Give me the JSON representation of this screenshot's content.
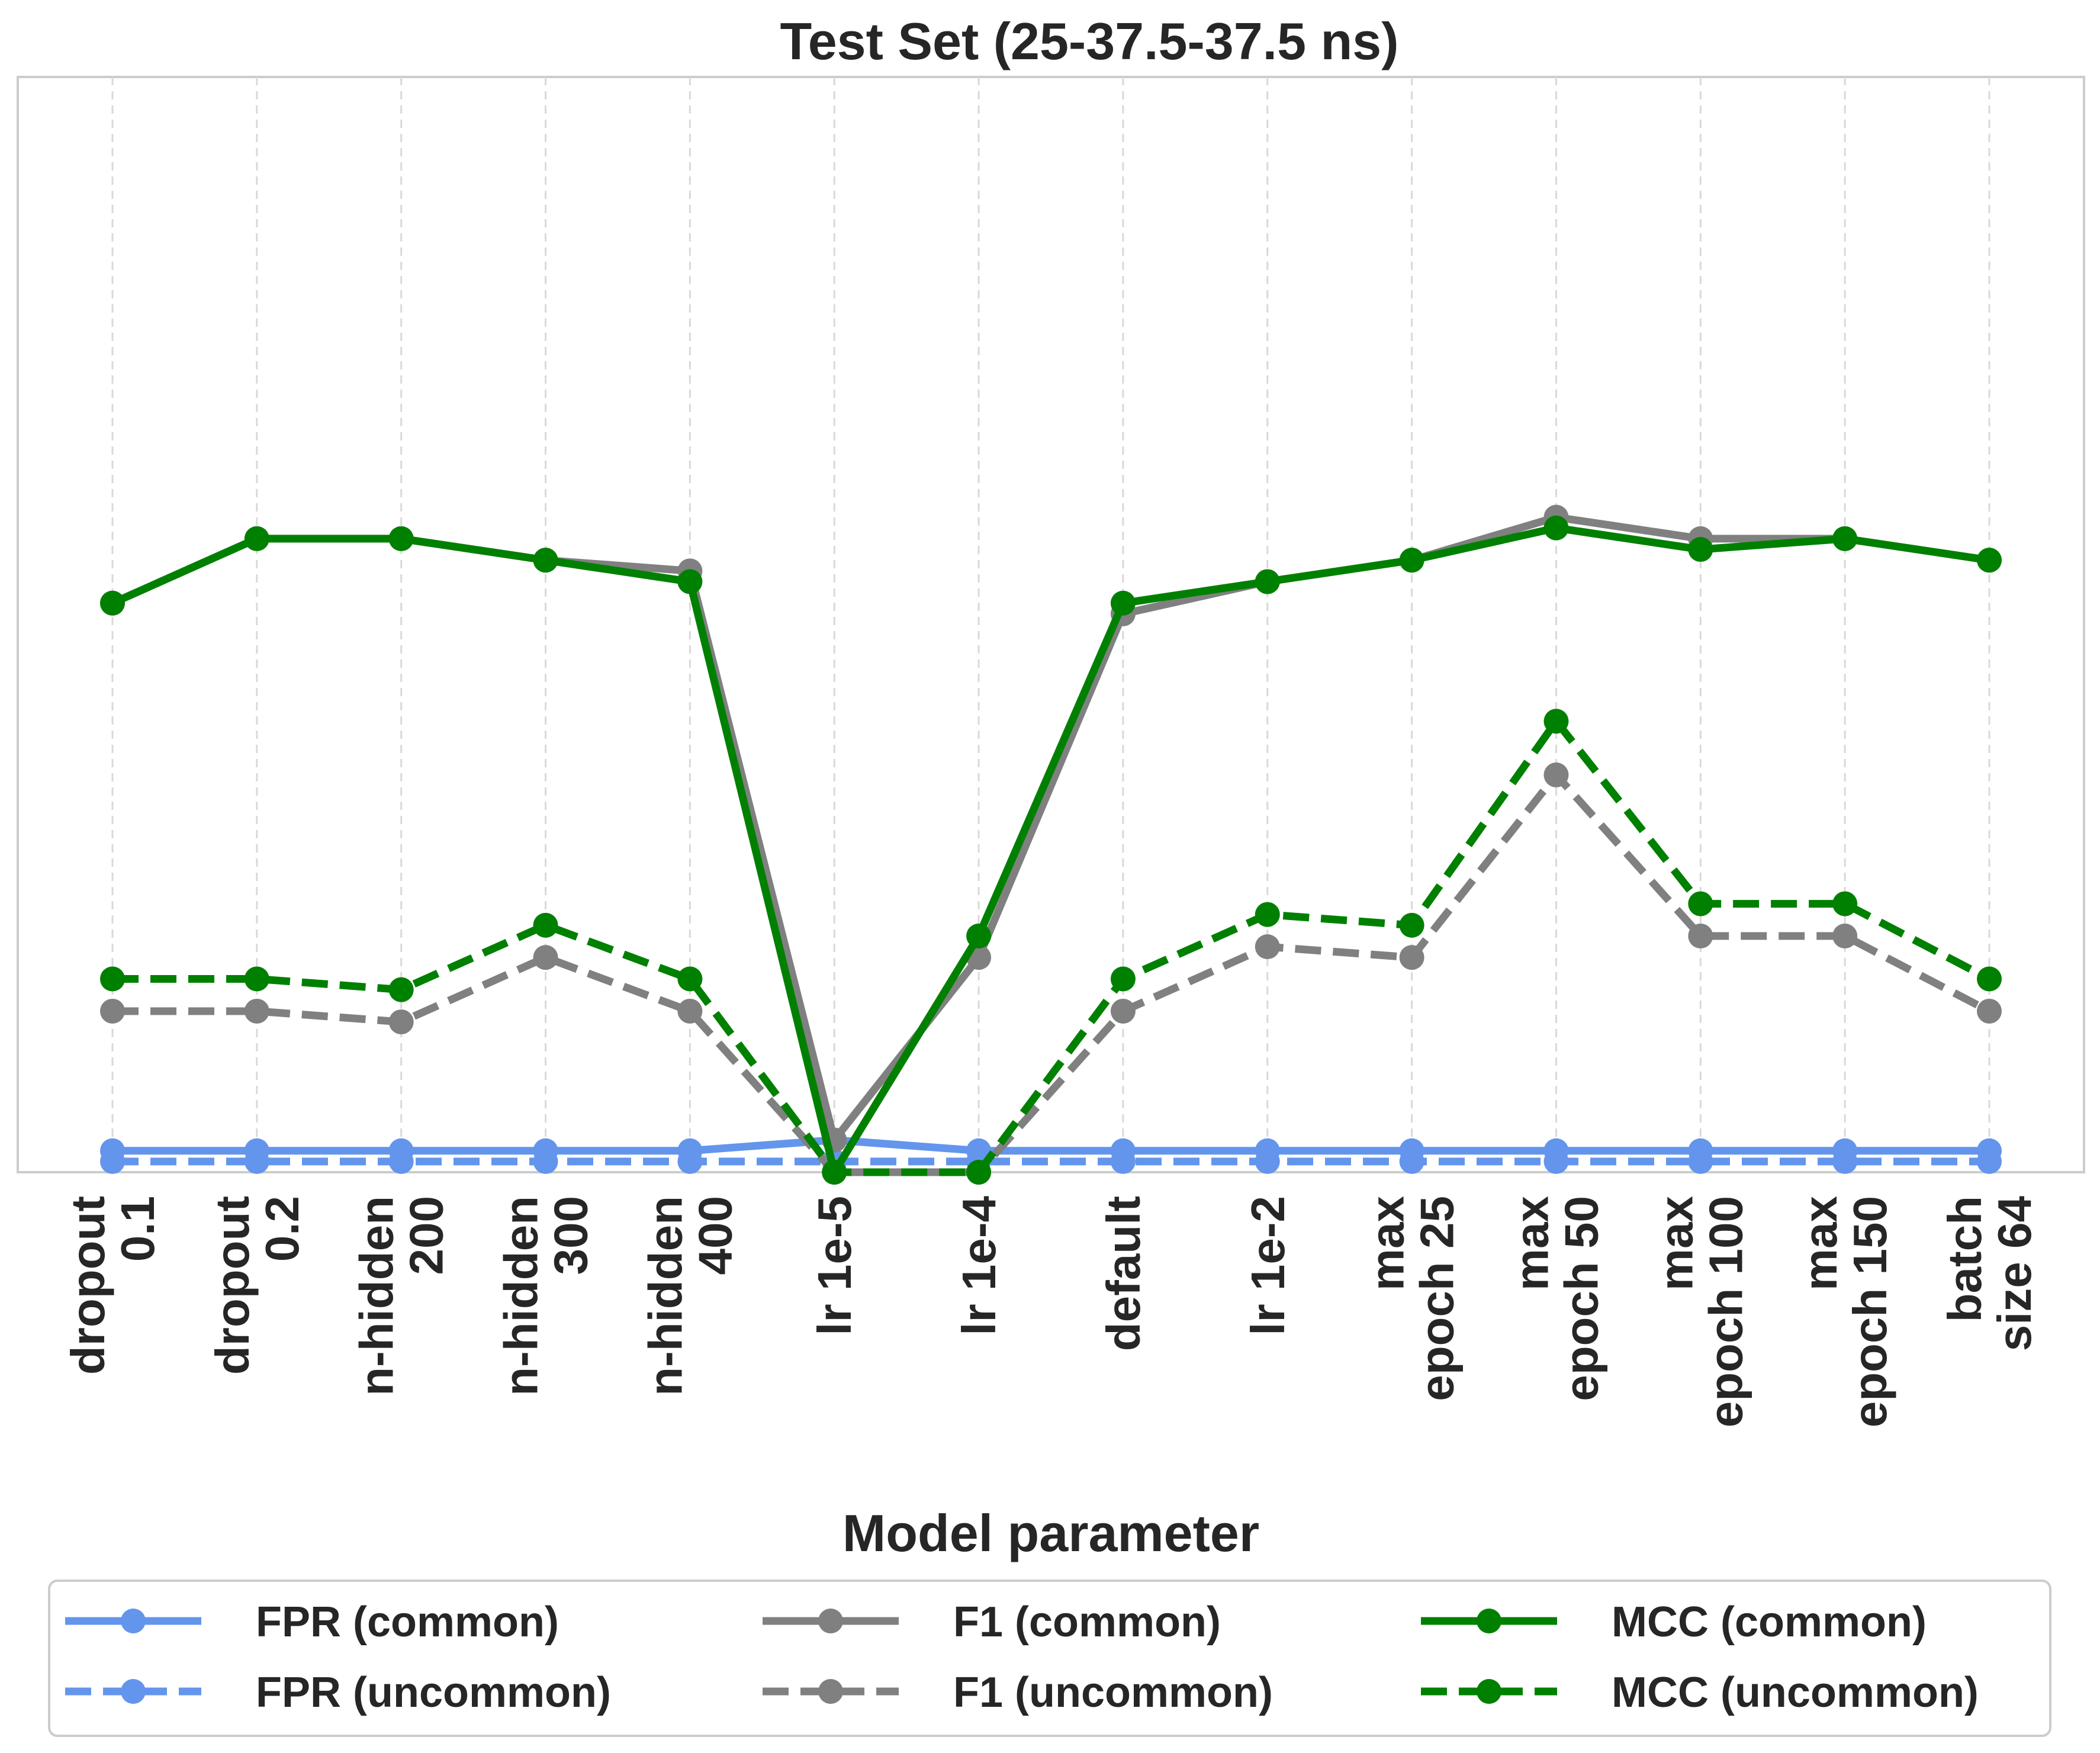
{
  "chart_data": {
    "type": "line",
    "title": "Test Set (25-37.5-37.5 ns)",
    "xlabel": "Model parameter",
    "ylabel": "",
    "categories": [
      [
        "dropout",
        "0.1"
      ],
      [
        "dropout",
        "0.2"
      ],
      [
        "n-hidden",
        "200"
      ],
      [
        "n-hidden",
        "300"
      ],
      [
        "n-hidden",
        "400"
      ],
      [
        "lr 1e-5"
      ],
      [
        "lr 1e-4"
      ],
      [
        "default"
      ],
      [
        "lr 1e-2"
      ],
      [
        "max",
        "epoch 25"
      ],
      [
        "max",
        "epoch 50"
      ],
      [
        "max",
        "epoch 100"
      ],
      [
        "max",
        "epoch 150"
      ],
      [
        "batch",
        "size 64"
      ]
    ],
    "ylim": [
      0,
      1.02
    ],
    "grid": "vertical dashed",
    "legend_position": "bottom",
    "series": [
      {
        "name": "FPR (common)",
        "color": "#6495ED",
        "dash": "solid",
        "values": [
          0.02,
          0.02,
          0.02,
          0.02,
          0.02,
          0.03,
          0.02,
          0.02,
          0.02,
          0.02,
          0.02,
          0.02,
          0.02,
          0.02
        ]
      },
      {
        "name": "F1 (common)",
        "color": "#808080",
        "dash": "solid",
        "values": [
          0.53,
          0.59,
          0.59,
          0.57,
          0.56,
          0.03,
          0.2,
          0.52,
          0.55,
          0.57,
          0.61,
          0.59,
          0.59,
          0.57
        ]
      },
      {
        "name": "MCC (common)",
        "color": "#008000",
        "dash": "solid",
        "values": [
          0.53,
          0.59,
          0.59,
          0.57,
          0.55,
          0.0,
          0.22,
          0.53,
          0.55,
          0.57,
          0.6,
          0.58,
          0.59,
          0.57
        ]
      },
      {
        "name": "FPR (uncommon)",
        "color": "#6495ED",
        "dash": "dashed",
        "values": [
          0.01,
          0.01,
          0.01,
          0.01,
          0.01,
          0.01,
          0.01,
          0.01,
          0.01,
          0.01,
          0.01,
          0.01,
          0.01,
          0.01
        ]
      },
      {
        "name": "F1 (uncommon)",
        "color": "#808080",
        "dash": "dashed",
        "values": [
          0.15,
          0.15,
          0.14,
          0.2,
          0.15,
          0.0,
          0.0,
          0.15,
          0.21,
          0.2,
          0.37,
          0.22,
          0.22,
          0.15
        ]
      },
      {
        "name": "MCC (uncommon)",
        "color": "#008000",
        "dash": "dashed",
        "values": [
          0.18,
          0.18,
          0.17,
          0.23,
          0.18,
          0.0,
          0.0,
          0.18,
          0.24,
          0.23,
          0.42,
          0.25,
          0.25,
          0.18
        ]
      }
    ],
    "legend_order": [
      0,
      3,
      1,
      4,
      2,
      5
    ]
  }
}
